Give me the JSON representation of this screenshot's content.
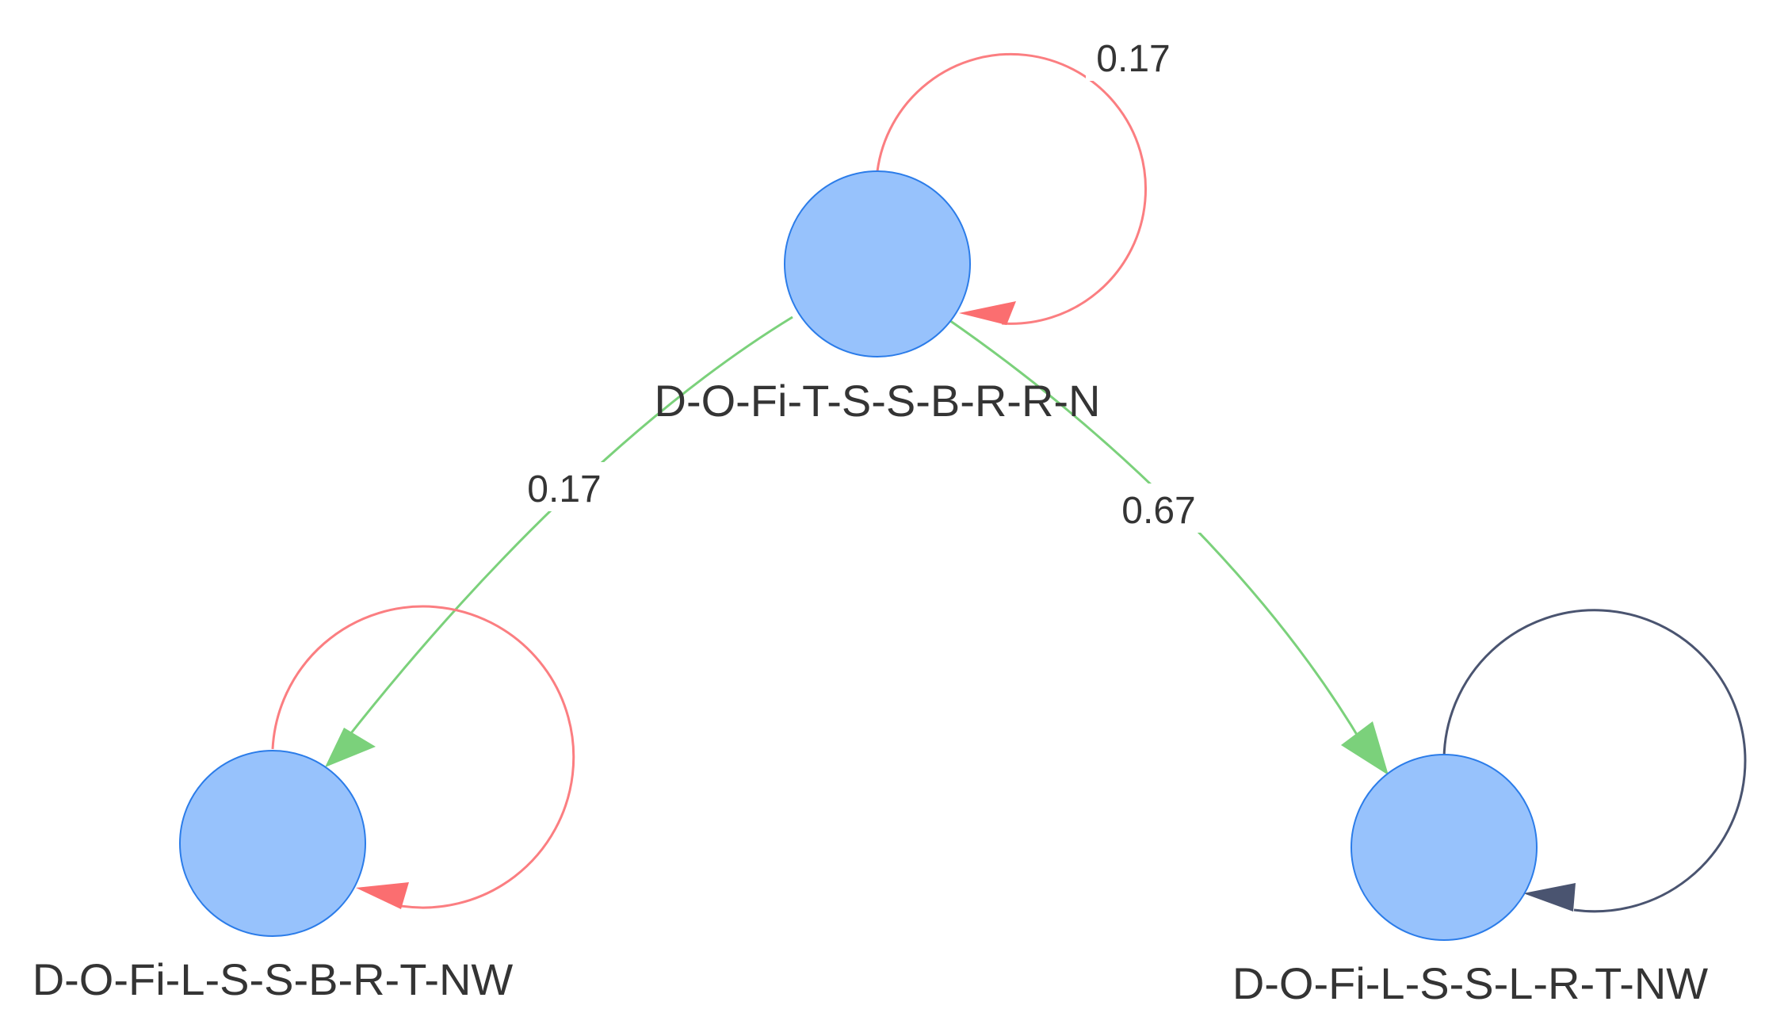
{
  "graph": {
    "nodes": [
      {
        "id": "top",
        "label": "D-O-Fi-T-S-S-B-R-R-N",
        "color": "#97c2fc",
        "border": "#2b7ce9"
      },
      {
        "id": "left",
        "label": "D-O-Fi-L-S-S-B-R-T-NW",
        "color": "#97c2fc",
        "border": "#2b7ce9"
      },
      {
        "id": "right",
        "label": "D-O-Fi-L-S-S-L-R-T-NW",
        "color": "#97c2fc",
        "border": "#2b7ce9"
      }
    ],
    "edges": [
      {
        "id": "top-self",
        "from": "top",
        "to": "top",
        "label": "0.17",
        "color": "#fb7e81"
      },
      {
        "id": "top-left",
        "from": "top",
        "to": "left",
        "label": "0.17",
        "color": "#7bd17b"
      },
      {
        "id": "top-right",
        "from": "top",
        "to": "right",
        "label": "0.67",
        "color": "#7bd17b"
      },
      {
        "id": "left-self",
        "from": "left",
        "to": "left",
        "label": "",
        "color": "#fb7e81"
      },
      {
        "id": "right-self",
        "from": "right",
        "to": "right",
        "label": "",
        "color": "#4a5470"
      }
    ]
  }
}
